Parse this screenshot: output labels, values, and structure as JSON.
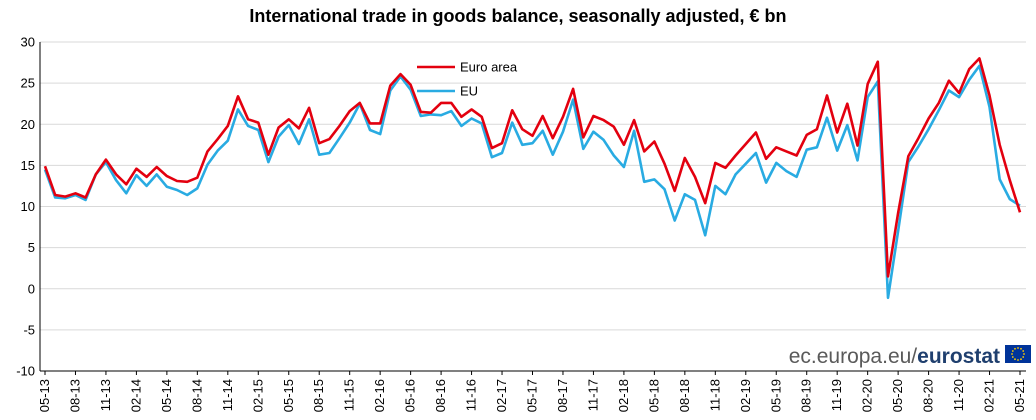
{
  "chart_data": {
    "type": "line",
    "title": "International trade in goods balance, seasonally adjusted, € bn",
    "xlabel": "",
    "ylabel": "",
    "ylim": [
      -10,
      30
    ],
    "yticks": [
      30,
      25,
      20,
      15,
      10,
      5,
      0,
      -5,
      -10
    ],
    "grid": "horizontal",
    "legend_position": "top-right",
    "x_tick_labels": [
      "05-13",
      "08-13",
      "11-13",
      "02-14",
      "05-14",
      "08-14",
      "11-14",
      "02-15",
      "05-15",
      "08-15",
      "11-15",
      "02-16",
      "05-16",
      "08-16",
      "11-16",
      "02-17",
      "05-17",
      "08-17",
      "11-17",
      "02-18",
      "05-18",
      "08-18",
      "11-18",
      "02-19",
      "05-19",
      "08-19",
      "11-19",
      "02-20",
      "05-20",
      "08-20",
      "11-20",
      "02-21",
      "05-21"
    ],
    "x_start": "2013-05",
    "x_end": "2021-05",
    "series": [
      {
        "name": "Euro area",
        "color": "#e3000f",
        "values": [
          14.9,
          11.4,
          11.2,
          11.6,
          11.1,
          13.9,
          15.7,
          13.9,
          12.7,
          14.6,
          13.6,
          14.8,
          13.7,
          13.1,
          13.0,
          13.5,
          16.7,
          18.2,
          19.8,
          23.4,
          20.6,
          20.2,
          16.3,
          19.6,
          20.6,
          19.5,
          22.0,
          17.7,
          18.2,
          19.8,
          21.6,
          22.6,
          20.1,
          20.1,
          24.7,
          26.1,
          24.8,
          21.5,
          21.4,
          22.6,
          22.6,
          20.9,
          21.8,
          20.9,
          17.1,
          17.7,
          21.7,
          19.4,
          18.6,
          21.0,
          18.3,
          20.9,
          24.3,
          18.4,
          21.0,
          20.5,
          19.7,
          17.5,
          20.5,
          16.7,
          17.9,
          15.2,
          11.9,
          15.9,
          13.6,
          10.4,
          15.3,
          14.7,
          16.2,
          17.6,
          19.0,
          15.8,
          17.2,
          16.7,
          16.2,
          18.7,
          19.4,
          23.5,
          19.0,
          22.5,
          17.4,
          24.9,
          27.6,
          1.5,
          9.2,
          16.1,
          18.3,
          20.7,
          22.6,
          25.3,
          23.8,
          26.7,
          28.0,
          23.5,
          17.5,
          13.2,
          9.3
        ]
      },
      {
        "name": "EU",
        "color": "#29abe2",
        "values": [
          14.5,
          11.1,
          11.0,
          11.4,
          10.8,
          13.9,
          15.4,
          13.2,
          11.6,
          13.8,
          12.5,
          13.9,
          12.4,
          12.0,
          11.4,
          12.2,
          15.1,
          16.8,
          18.0,
          21.8,
          19.8,
          19.3,
          15.4,
          18.5,
          19.9,
          17.6,
          20.6,
          16.3,
          16.5,
          18.3,
          20.2,
          22.5,
          19.3,
          18.8,
          24.1,
          25.8,
          24.2,
          21.0,
          21.2,
          21.1,
          21.6,
          19.8,
          20.7,
          20.1,
          16.0,
          16.5,
          20.2,
          17.5,
          17.7,
          19.2,
          16.3,
          19.1,
          23.0,
          17.0,
          19.1,
          18.1,
          16.2,
          14.8,
          19.2,
          13.0,
          13.3,
          12.1,
          8.3,
          11.5,
          10.8,
          6.5,
          12.5,
          11.5,
          13.9,
          15.2,
          16.5,
          12.9,
          15.3,
          14.3,
          13.6,
          16.9,
          17.2,
          20.8,
          16.8,
          19.9,
          15.6,
          23.3,
          25.2,
          -1.1,
          7.0,
          15.4,
          17.3,
          19.4,
          21.7,
          24.1,
          23.3,
          25.4,
          27.1,
          22.1,
          13.3,
          10.9,
          10.1
        ]
      }
    ]
  },
  "watermark": {
    "domain_text": "ec.europa.eu/",
    "brand_text": "eurostat",
    "logo_icon": "eu-flag-icon"
  }
}
